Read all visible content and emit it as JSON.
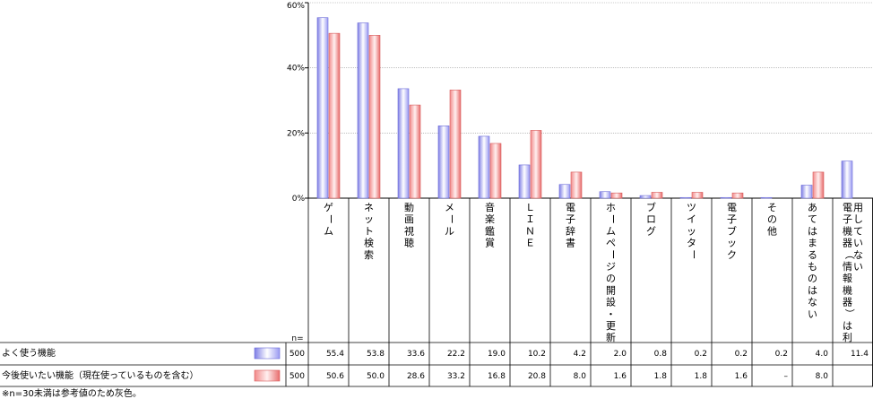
{
  "chart_data": {
    "type": "bar",
    "ylim": [
      0,
      60
    ],
    "yticks": [
      "0%",
      "20%",
      "40%",
      "60%"
    ],
    "ytick_values": [
      0,
      20,
      40,
      60
    ],
    "categories": [
      "ゲーム",
      "ネット検索",
      "動画視聴",
      "メール",
      "音楽鑑賞",
      "ＬＩＮＥ",
      "電子辞書",
      "ホームページの開設・更新",
      "ブログ",
      "ツイッター",
      "電子ブック",
      "その他",
      "あてはまるものはない",
      "電子機器（情報機器）は利用していない"
    ],
    "category_columns": [
      [
        "ゲーム"
      ],
      [
        "ネット検索"
      ],
      [
        "動画視聴"
      ],
      [
        "メール"
      ],
      [
        "音楽鑑賞"
      ],
      [
        "ＬＩＮＥ"
      ],
      [
        "電子辞書"
      ],
      [
        "ホームページの開設・更新"
      ],
      [
        "ブログ"
      ],
      [
        "ツイッター"
      ],
      [
        "電子ブック"
      ],
      [
        "その他"
      ],
      [
        "あてはまるものはない"
      ],
      [
        "用していない",
        "電子機器（情報機器）は利"
      ]
    ],
    "n_header": "n=",
    "series": [
      {
        "name": "よく使う機能",
        "n": "500",
        "color": "#8a8af0",
        "values": [
          55.4,
          53.8,
          33.6,
          22.2,
          19.0,
          10.2,
          4.2,
          2.0,
          0.8,
          0.2,
          0.2,
          0.2,
          4.0,
          11.4
        ],
        "labels": [
          "55.4",
          "53.8",
          "33.6",
          "22.2",
          "19.0",
          "10.2",
          "4.2",
          "2.0",
          "0.8",
          "0.2",
          "0.2",
          "0.2",
          "4.0",
          "11.4"
        ]
      },
      {
        "name": "今後使いたい機能（現在使っているものを含む）",
        "n": "500",
        "color": "#f07a7a",
        "values": [
          50.6,
          50.0,
          28.6,
          33.2,
          16.8,
          20.8,
          8.0,
          1.6,
          1.8,
          1.8,
          1.6,
          0,
          8.0,
          null
        ],
        "labels": [
          "50.6",
          "50.0",
          "28.6",
          "33.2",
          "16.8",
          "20.8",
          "8.0",
          "1.6",
          "1.8",
          "1.8",
          "1.6",
          "–",
          "8.0",
          ""
        ]
      }
    ],
    "note": "※n=30未満は参考値のため灰色。"
  }
}
